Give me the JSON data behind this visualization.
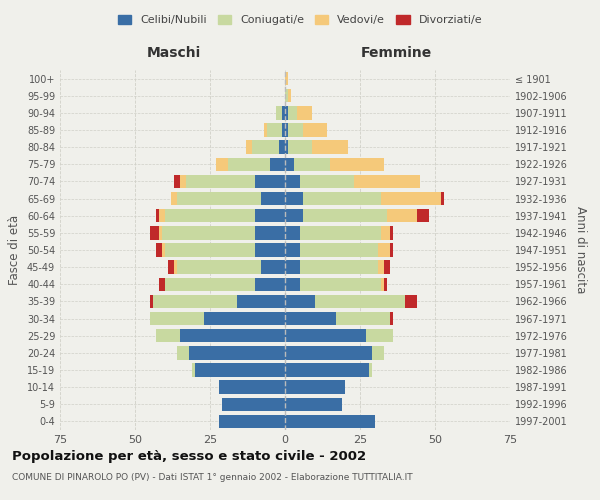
{
  "age_groups": [
    "0-4",
    "5-9",
    "10-14",
    "15-19",
    "20-24",
    "25-29",
    "30-34",
    "35-39",
    "40-44",
    "45-49",
    "50-54",
    "55-59",
    "60-64",
    "65-69",
    "70-74",
    "75-79",
    "80-84",
    "85-89",
    "90-94",
    "95-99",
    "100+"
  ],
  "birth_years": [
    "1997-2001",
    "1992-1996",
    "1987-1991",
    "1982-1986",
    "1977-1981",
    "1972-1976",
    "1967-1971",
    "1962-1966",
    "1957-1961",
    "1952-1956",
    "1947-1951",
    "1942-1946",
    "1937-1941",
    "1932-1936",
    "1927-1931",
    "1922-1926",
    "1917-1921",
    "1912-1916",
    "1907-1911",
    "1902-1906",
    "≤ 1901"
  ],
  "males": {
    "celibi": [
      22,
      21,
      22,
      30,
      32,
      35,
      27,
      16,
      10,
      8,
      10,
      10,
      10,
      8,
      10,
      5,
      2,
      1,
      1,
      0,
      0
    ],
    "coniugati": [
      0,
      0,
      0,
      1,
      4,
      8,
      18,
      28,
      30,
      28,
      30,
      31,
      30,
      28,
      23,
      14,
      9,
      5,
      2,
      0,
      0
    ],
    "vedovi": [
      0,
      0,
      0,
      0,
      0,
      0,
      0,
      0,
      0,
      1,
      1,
      1,
      2,
      2,
      2,
      4,
      2,
      1,
      0,
      0,
      0
    ],
    "divorziati": [
      0,
      0,
      0,
      0,
      0,
      0,
      0,
      1,
      2,
      2,
      2,
      3,
      1,
      0,
      2,
      0,
      0,
      0,
      0,
      0,
      0
    ]
  },
  "females": {
    "nubili": [
      30,
      19,
      20,
      28,
      29,
      27,
      17,
      10,
      5,
      5,
      5,
      5,
      6,
      6,
      5,
      3,
      1,
      1,
      1,
      0,
      0
    ],
    "coniugate": [
      0,
      0,
      0,
      1,
      4,
      9,
      18,
      30,
      27,
      26,
      26,
      27,
      28,
      26,
      18,
      12,
      8,
      5,
      3,
      1,
      0
    ],
    "vedove": [
      0,
      0,
      0,
      0,
      0,
      0,
      0,
      0,
      1,
      2,
      4,
      3,
      10,
      20,
      22,
      18,
      12,
      8,
      5,
      1,
      1
    ],
    "divorziate": [
      0,
      0,
      0,
      0,
      0,
      0,
      1,
      4,
      1,
      2,
      1,
      1,
      4,
      1,
      0,
      0,
      0,
      0,
      0,
      0,
      0
    ]
  },
  "colors": {
    "celibi": "#3a6ea5",
    "coniugati": "#c8d9a0",
    "vedovi": "#f5c97a",
    "divorziati": "#c0292a"
  },
  "title": "Popolazione per età, sesso e stato civile - 2002",
  "subtitle": "COMUNE DI PINAROLO PO (PV) - Dati ISTAT 1° gennaio 2002 - Elaborazione TUTTITALIA.IT",
  "xlabel_left": "Maschi",
  "xlabel_right": "Femmine",
  "ylabel_left": "Fasce di età",
  "ylabel_right": "Anni di nascita",
  "xlim": 75,
  "background_color": "#f0f0eb",
  "grid_color": "#d0d0c8",
  "legend_labels": [
    "Celibi/Nubili",
    "Coniugati/e",
    "Vedovi/e",
    "Divorziati/e"
  ]
}
